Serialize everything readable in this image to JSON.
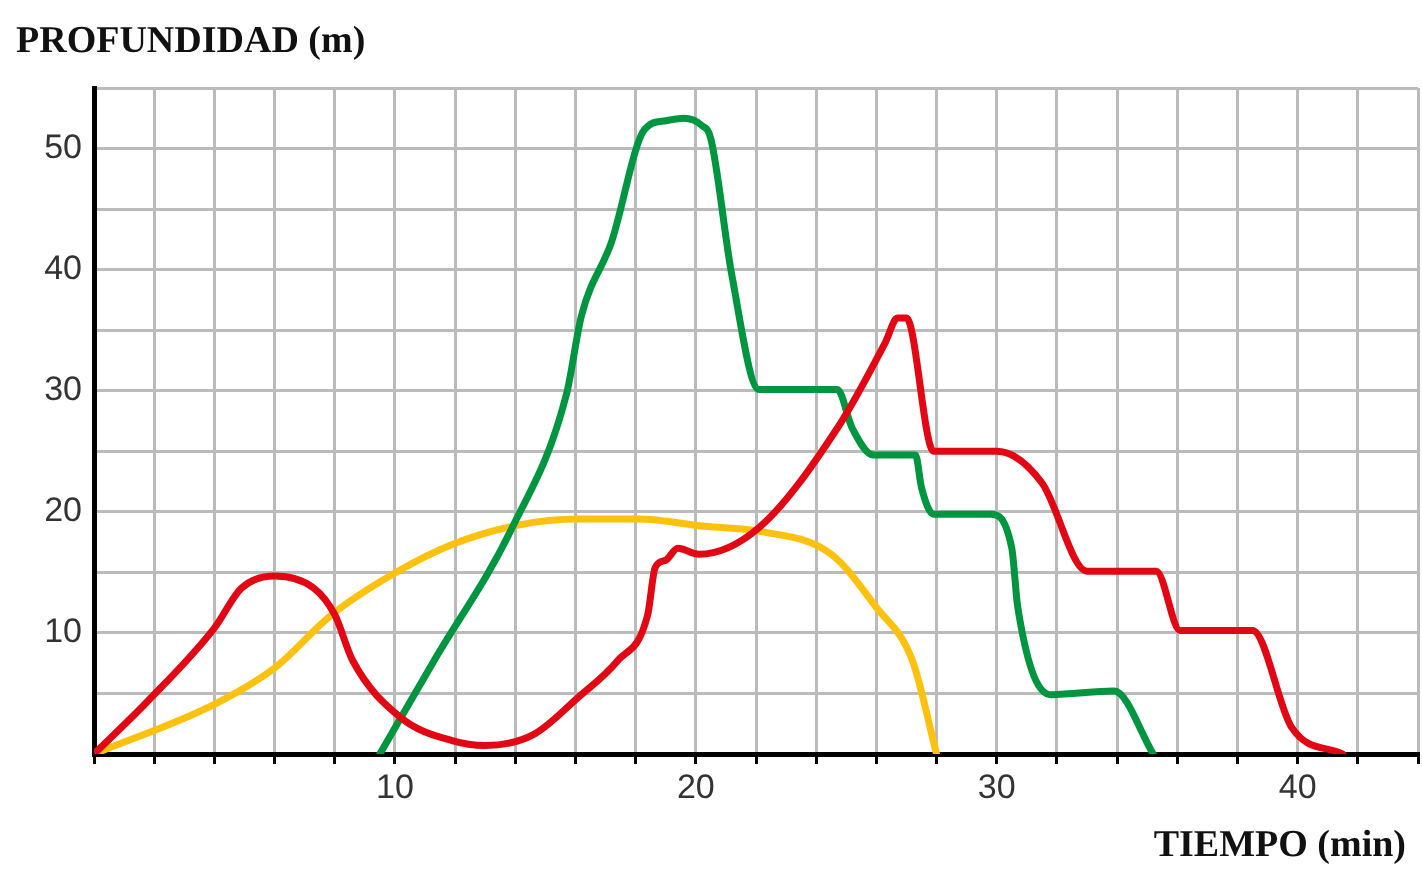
{
  "chart_data": {
    "type": "line",
    "xlabel": "TIEMPO (min)",
    "ylabel": "PROFUNDIDAD (m)",
    "xlim": [
      0,
      44
    ],
    "ylim": [
      0,
      55
    ],
    "xticks": [
      {
        "value": 0,
        "label": null
      },
      {
        "value": 2,
        "label": null
      },
      {
        "value": 4,
        "label": null
      },
      {
        "value": 6,
        "label": null
      },
      {
        "value": 8,
        "label": null
      },
      10,
      {
        "value": 12,
        "label": null
      },
      {
        "value": 14,
        "label": null
      },
      {
        "value": 16,
        "label": null
      },
      {
        "value": 18,
        "label": null
      },
      20,
      {
        "value": 22,
        "label": null
      },
      {
        "value": 24,
        "label": null
      },
      {
        "value": 26,
        "label": null
      },
      {
        "value": 28,
        "label": null
      },
      30,
      {
        "value": 32,
        "label": null
      },
      {
        "value": 34,
        "label": null
      },
      {
        "value": 36,
        "label": null
      },
      {
        "value": 38,
        "label": null
      },
      40,
      {
        "value": 42,
        "label": null
      },
      {
        "value": 44,
        "label": null
      }
    ],
    "yticks": [
      {
        "value": 0,
        "label": null
      },
      {
        "value": 5,
        "label": null
      },
      10,
      {
        "value": 15,
        "label": null
      },
      20,
      {
        "value": 25,
        "label": null
      },
      30,
      {
        "value": 35,
        "label": null
      },
      40,
      {
        "value": 45,
        "label": null
      },
      50,
      {
        "value": 55,
        "label": null
      }
    ],
    "grid": true,
    "legend": false,
    "series": [
      {
        "color": "#e30613",
        "x": [
          0,
          1.8,
          4,
          4.9,
          6,
          7.3,
          8,
          8.6,
          10.2,
          11.9,
          13,
          14.6,
          16.1,
          17.4,
          18.4,
          18.65,
          19,
          19.4,
          20.1,
          22.1,
          24.7,
          26.3,
          26.7,
          27,
          27.9,
          30,
          31.5,
          33,
          35.3,
          36.1,
          38.5,
          39.8,
          41.5
        ],
        "values": [
          0,
          4.4,
          10.4,
          13.7,
          14.7,
          13.7,
          11.5,
          7.7,
          3,
          1.1,
          0.7,
          1.6,
          4.7,
          7.7,
          11.5,
          15.4,
          16,
          17,
          16.5,
          18.7,
          26.9,
          34,
          36,
          36,
          25,
          25,
          22.4,
          15.1,
          15.1,
          10.2,
          10.2,
          2.2,
          0
        ]
      },
      {
        "color": "#009640",
        "x": [
          9.5,
          11.3,
          13.9,
          15.7,
          16.2,
          17.2,
          18.3,
          19,
          19.6,
          20.2,
          20.5,
          21.2,
          22.1,
          24.7,
          25.2,
          25.9,
          27.3,
          27.5,
          27.9,
          29.8,
          30.5,
          30.7,
          31.8,
          33.9,
          35.2
        ],
        "values": [
          0,
          7.7,
          18.7,
          29.7,
          36.2,
          42.3,
          51.6,
          52.3,
          52.5,
          51.9,
          50.8,
          39.5,
          30.1,
          30.1,
          26.9,
          24.7,
          24.7,
          22,
          19.8,
          19.8,
          17,
          12.1,
          4.9,
          5.2,
          0
        ]
      },
      {
        "color": "#fec10e",
        "x": [
          0,
          4,
          6,
          7.9,
          9.9,
          11.9,
          14.1,
          16.1,
          18.1,
          20.3,
          22.1,
          24.5,
          26,
          27.2,
          28
        ],
        "values": [
          0,
          4.1,
          7.1,
          11.5,
          14.8,
          17.3,
          18.9,
          19.4,
          19.4,
          18.8,
          18.4,
          16.5,
          12.1,
          7.7,
          0
        ]
      }
    ]
  }
}
